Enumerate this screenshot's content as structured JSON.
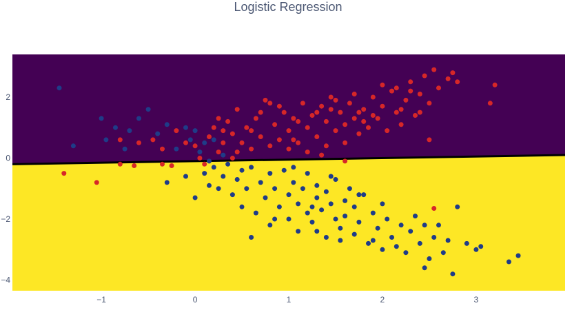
{
  "chart_data": {
    "type": "scatter",
    "title": "Logistic Regression",
    "xlabel": "",
    "ylabel": "",
    "xlim": [
      -1.95,
      3.95
    ],
    "ylim": [
      -4.35,
      3.4
    ],
    "x_ticks": [
      -1,
      0,
      1,
      2,
      3
    ],
    "y_ticks": [
      -4,
      -2,
      0,
      2
    ],
    "grid": false,
    "decision_boundary": {
      "y_at_xmin": -0.2,
      "y_at_xmax": 0.1
    },
    "regions": [
      {
        "class": "upper",
        "color": "#440154"
      },
      {
        "class": "lower",
        "color": "#fde725"
      }
    ],
    "series": [
      {
        "color": "#d62728",
        "points": [
          [
            -1.4,
            -0.5
          ],
          [
            -1.05,
            -0.8
          ],
          [
            -0.8,
            -0.2
          ],
          [
            -0.65,
            -0.25
          ],
          [
            -0.35,
            -0.2
          ],
          [
            -0.25,
            -0.25
          ],
          [
            0.1,
            -0.2
          ],
          [
            -0.8,
            0.6
          ],
          [
            -0.6,
            0.5
          ],
          [
            -0.45,
            0.6
          ],
          [
            -0.35,
            0.3
          ],
          [
            -0.2,
            0.9
          ],
          [
            -0.1,
            0.5
          ],
          [
            0.0,
            0.4
          ],
          [
            0.05,
            0.0
          ],
          [
            0.15,
            0.7
          ],
          [
            0.2,
            1.0
          ],
          [
            0.25,
            0.2
          ],
          [
            0.3,
            0.5
          ],
          [
            0.35,
            1.2
          ],
          [
            0.4,
            0.8
          ],
          [
            0.45,
            0.2
          ],
          [
            0.45,
            1.6
          ],
          [
            0.5,
            0.5
          ],
          [
            0.55,
            1.0
          ],
          [
            0.6,
            0.3
          ],
          [
            0.65,
            1.3
          ],
          [
            0.7,
            0.7
          ],
          [
            0.75,
            1.9
          ],
          [
            0.8,
            0.4
          ],
          [
            0.85,
            1.1
          ],
          [
            0.9,
            0.6
          ],
          [
            0.95,
            1.5
          ],
          [
            1.0,
            0.9
          ],
          [
            1.0,
            0.3
          ],
          [
            1.05,
            1.3
          ],
          [
            1.1,
            0.5
          ],
          [
            1.15,
            1.8
          ],
          [
            1.2,
            1.0
          ],
          [
            1.2,
            0.2
          ],
          [
            1.25,
            1.4
          ],
          [
            1.3,
            0.7
          ],
          [
            1.35,
            1.7
          ],
          [
            1.4,
            1.2
          ],
          [
            1.4,
            0.4
          ],
          [
            1.45,
            2.0
          ],
          [
            1.5,
            0.9
          ],
          [
            1.55,
            1.5
          ],
          [
            1.6,
            1.1
          ],
          [
            1.6,
            0.5
          ],
          [
            1.65,
            1.8
          ],
          [
            1.7,
            1.3
          ],
          [
            1.75,
            0.8
          ],
          [
            1.8,
            1.6
          ],
          [
            1.85,
            1.0
          ],
          [
            1.9,
            2.0
          ],
          [
            1.95,
            1.3
          ],
          [
            2.0,
            1.7
          ],
          [
            2.05,
            0.9
          ],
          [
            2.1,
            2.2
          ],
          [
            2.15,
            1.5
          ],
          [
            2.2,
            1.1
          ],
          [
            2.25,
            1.9
          ],
          [
            2.3,
            2.5
          ],
          [
            2.35,
            1.4
          ],
          [
            2.4,
            2.1
          ],
          [
            2.45,
            2.7
          ],
          [
            2.5,
            1.8
          ],
          [
            2.55,
            2.9
          ],
          [
            2.6,
            2.3
          ],
          [
            2.5,
            0.6
          ],
          [
            2.75,
            2.8
          ],
          [
            3.15,
            1.8
          ],
          [
            3.2,
            2.4
          ],
          [
            1.35,
            0.1
          ],
          [
            1.6,
            -0.1
          ],
          [
            2.55,
            -1.65
          ],
          [
            0.3,
            0.9
          ],
          [
            0.9,
            1.7
          ],
          [
            1.1,
            1.2
          ],
          [
            1.3,
            1.5
          ],
          [
            1.7,
            2.1
          ],
          [
            1.8,
            1.2
          ],
          [
            2.0,
            2.4
          ],
          [
            2.2,
            1.6
          ],
          [
            0.6,
            0.9
          ],
          [
            0.7,
            1.5
          ],
          [
            0.8,
            1.8
          ],
          [
            1.5,
            1.9
          ],
          [
            1.9,
            1.4
          ],
          [
            2.3,
            2.2
          ],
          [
            2.7,
            2.6
          ],
          [
            0.25,
            1.3
          ],
          [
            0.4,
            0.0
          ],
          [
            1.05,
            0.6
          ],
          [
            1.45,
            1.6
          ],
          [
            1.75,
            1.5
          ],
          [
            2.15,
            2.3
          ],
          [
            2.4,
            1.5
          ],
          [
            2.8,
            2.5
          ]
        ]
      },
      {
        "color": "#1f3c88",
        "points": [
          [
            -1.45,
            2.3
          ],
          [
            -1.3,
            0.4
          ],
          [
            -1.0,
            1.3
          ],
          [
            -0.95,
            0.6
          ],
          [
            -0.85,
            1.0
          ],
          [
            -0.75,
            0.3
          ],
          [
            -0.7,
            0.9
          ],
          [
            -0.6,
            1.3
          ],
          [
            -0.5,
            1.6
          ],
          [
            -0.4,
            0.8
          ],
          [
            -0.3,
            1.1
          ],
          [
            -0.2,
            0.3
          ],
          [
            -0.1,
            1.0
          ],
          [
            -0.05,
            0.6
          ],
          [
            0.0,
            0.9
          ],
          [
            0.05,
            0.2
          ],
          [
            0.1,
            0.5
          ],
          [
            0.15,
            -0.1
          ],
          [
            0.2,
            0.6
          ],
          [
            0.3,
            0.1
          ],
          [
            -0.3,
            -0.8
          ],
          [
            -0.1,
            -0.6
          ],
          [
            0.0,
            -1.3
          ],
          [
            0.1,
            -0.5
          ],
          [
            0.15,
            -0.9
          ],
          [
            0.2,
            -0.3
          ],
          [
            0.25,
            -1.0
          ],
          [
            0.3,
            -0.6
          ],
          [
            0.35,
            -0.2
          ],
          [
            0.4,
            -1.2
          ],
          [
            0.45,
            -0.7
          ],
          [
            0.5,
            -0.4
          ],
          [
            0.5,
            -1.6
          ],
          [
            0.55,
            -1.0
          ],
          [
            0.6,
            -0.3
          ],
          [
            0.65,
            -1.8
          ],
          [
            0.7,
            -0.8
          ],
          [
            0.75,
            -1.3
          ],
          [
            0.8,
            -0.5
          ],
          [
            0.8,
            -2.2
          ],
          [
            0.85,
            -1.0
          ],
          [
            0.9,
            -1.6
          ],
          [
            0.95,
            -0.4
          ],
          [
            1.0,
            -1.2
          ],
          [
            1.0,
            -2.0
          ],
          [
            1.05,
            -0.8
          ],
          [
            1.1,
            -1.5
          ],
          [
            1.1,
            -2.4
          ],
          [
            1.15,
            -1.0
          ],
          [
            1.2,
            -1.8
          ],
          [
            1.2,
            -0.5
          ],
          [
            1.25,
            -2.1
          ],
          [
            1.3,
            -1.3
          ],
          [
            1.3,
            -0.9
          ],
          [
            1.35,
            -1.7
          ],
          [
            1.4,
            -2.6
          ],
          [
            1.4,
            -1.1
          ],
          [
            1.45,
            -1.5
          ],
          [
            1.5,
            -2.0
          ],
          [
            1.5,
            -0.7
          ],
          [
            1.55,
            -2.3
          ],
          [
            1.6,
            -1.4
          ],
          [
            1.6,
            -1.9
          ],
          [
            1.65,
            -1.0
          ],
          [
            1.7,
            -2.5
          ],
          [
            1.7,
            -1.6
          ],
          [
            1.75,
            -2.1
          ],
          [
            1.8,
            -1.2
          ],
          [
            1.85,
            -2.8
          ],
          [
            1.9,
            -1.8
          ],
          [
            1.95,
            -2.3
          ],
          [
            2.0,
            -1.5
          ],
          [
            2.0,
            -3.0
          ],
          [
            2.05,
            -2.0
          ],
          [
            2.1,
            -2.6
          ],
          [
            2.2,
            -2.2
          ],
          [
            2.25,
            -3.1
          ],
          [
            2.3,
            -2.4
          ],
          [
            2.35,
            -1.9
          ],
          [
            2.4,
            -2.8
          ],
          [
            2.45,
            -2.2
          ],
          [
            2.5,
            -3.3
          ],
          [
            2.55,
            -2.6
          ],
          [
            2.6,
            -2.2
          ],
          [
            2.65,
            -3.1
          ],
          [
            2.7,
            -2.7
          ],
          [
            2.75,
            -3.8
          ],
          [
            2.8,
            -1.6
          ],
          [
            2.9,
            -2.8
          ],
          [
            3.0,
            -3.0
          ],
          [
            3.05,
            -2.9
          ],
          [
            3.35,
            -3.4
          ],
          [
            3.45,
            -3.2
          ],
          [
            0.6,
            -2.6
          ],
          [
            1.3,
            -2.4
          ],
          [
            1.9,
            -2.7
          ],
          [
            2.15,
            -2.9
          ],
          [
            1.05,
            -0.3
          ],
          [
            1.45,
            -0.6
          ],
          [
            0.85,
            -2.0
          ],
          [
            1.25,
            -1.6
          ],
          [
            1.75,
            -1.2
          ],
          [
            1.55,
            -2.7
          ],
          [
            2.45,
            -3.6
          ]
        ]
      }
    ]
  }
}
